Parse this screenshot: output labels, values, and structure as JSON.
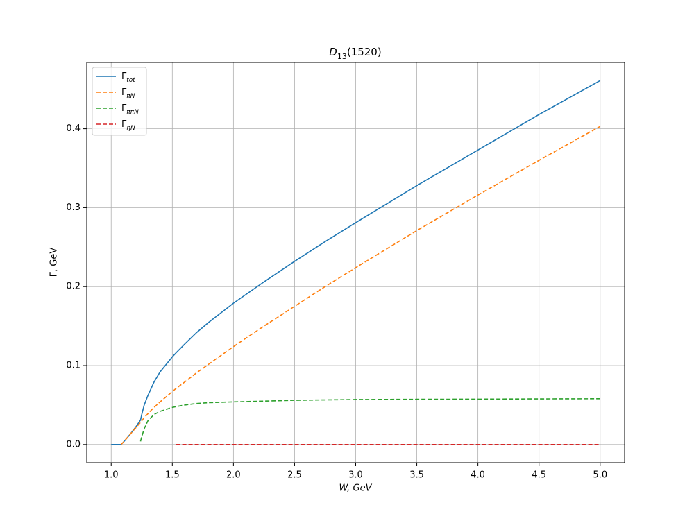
{
  "chart_data": {
    "type": "line",
    "title": {
      "main": "D",
      "sub": "13",
      "tail": "(1520)"
    },
    "x_label": "W, GeV",
    "y_label": "Γ, GeV",
    "x": [
      1.0,
      1.08,
      1.1,
      1.15,
      1.2,
      1.24,
      1.25,
      1.27,
      1.3,
      1.35,
      1.4,
      1.5,
      1.53,
      1.6,
      1.7,
      1.8,
      1.9,
      2.0,
      2.25,
      2.5,
      2.75,
      3.0,
      3.5,
      4.0,
      4.5,
      5.0
    ],
    "series": [
      {
        "name": "Γ",
        "sub": "tot",
        "color": "#1f77b4",
        "dash": "solid",
        "values": [
          0,
          0,
          0.003,
          0.012,
          0.022,
          0.031,
          0.038,
          0.05,
          0.062,
          0.079,
          0.092,
          0.111,
          0.116,
          0.127,
          0.142,
          0.155,
          0.167,
          0.179,
          0.206,
          0.232,
          0.257,
          0.281,
          0.328,
          0.373,
          0.418,
          0.461
        ]
      },
      {
        "name": "Γ",
        "sub": "πN",
        "color": "#ff7f0e",
        "dash": "dashed",
        "values": [
          null,
          0,
          0.003,
          0.012,
          0.021,
          0.028,
          0.03,
          0.034,
          0.039,
          0.047,
          0.054,
          0.067,
          0.071,
          0.079,
          0.091,
          0.102,
          0.113,
          0.124,
          0.15,
          0.175,
          0.2,
          0.224,
          0.271,
          0.316,
          0.36,
          0.403
        ]
      },
      {
        "name": "Γ",
        "sub": "ππN",
        "color": "#2ca02c",
        "dash": "dashed",
        "values": [
          null,
          null,
          null,
          null,
          null,
          0.004,
          0.01,
          0.02,
          0.03,
          0.038,
          0.042,
          0.047,
          0.048,
          0.05,
          0.052,
          0.053,
          0.0535,
          0.054,
          0.055,
          0.056,
          0.0565,
          0.057,
          0.0573,
          0.0575,
          0.0578,
          0.058
        ]
      },
      {
        "name": "Γ",
        "sub": "ηN",
        "color": "#d62728",
        "dash": "dashed",
        "values": [
          null,
          null,
          null,
          null,
          null,
          null,
          null,
          null,
          null,
          null,
          null,
          null,
          0,
          0,
          0,
          0,
          0,
          0,
          0,
          0,
          0,
          0,
          0,
          0,
          0,
          0
        ]
      }
    ],
    "xlim": [
      0.8,
      5.2
    ],
    "ylim": [
      -0.023,
      0.484
    ],
    "xticks": [
      {
        "value": 1,
        "label": "1.0"
      },
      1.5,
      {
        "value": 2,
        "label": "2.0"
      },
      2.5,
      {
        "value": 3,
        "label": "3.0"
      },
      3.5,
      {
        "value": 4,
        "label": "4.0"
      },
      4.5,
      {
        "value": 5,
        "label": "5.0"
      }
    ],
    "yticks": [
      {
        "value": 0,
        "label": "0.0"
      },
      0.1,
      0.2,
      0.3,
      0.4
    ],
    "grid": true,
    "legend": "upper-left"
  }
}
